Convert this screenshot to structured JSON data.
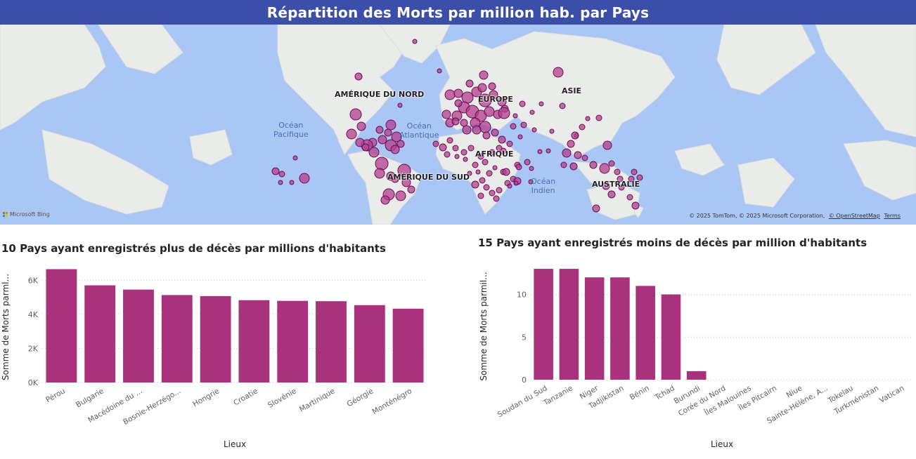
{
  "banner": {
    "title": "Répartition des Morts par million hab. par Pays"
  },
  "map": {
    "region_labels": [
      {
        "id": "north-america",
        "text": "AMÉRIQUE DU NORD"
      },
      {
        "id": "europe",
        "text": "EUROPE"
      },
      {
        "id": "asia",
        "text": "ASIE"
      },
      {
        "id": "africa",
        "text": "AFRIQUE"
      },
      {
        "id": "south-america",
        "text": "AMÉRIQUE DU SUD"
      },
      {
        "id": "australia",
        "text": "AUSTRALIE"
      }
    ],
    "ocean_labels": [
      {
        "id": "pacific",
        "line1": "Océan",
        "line2": "Pacifique"
      },
      {
        "id": "atlantic",
        "line1": "Océan",
        "line2": "Atlantique"
      },
      {
        "id": "indian",
        "line1": "Océan",
        "line2": "Indien"
      }
    ],
    "logo_text": "Microsoft Bing",
    "attribution": "© 2025 TomTom, © 2025 Microsoft Corporation,",
    "attribution_link": "© OpenStreetMap",
    "terms_link": "Terms",
    "colors": {
      "bubble_fill": "#b13e8e",
      "bubble_stroke": "#6b0f4f",
      "water": "#a9c6f5",
      "land": "#eaecea"
    }
  },
  "chart_data": [
    {
      "type": "bar",
      "title": "10 Pays ayant enregistrés plus de décès par millions d'habitants",
      "xlabel": "Lieux",
      "ylabel": "Somme de Morts parml...",
      "categories": [
        "Pérou",
        "Bulgarie",
        "Macédoine du ...",
        "Bosnie-Herzégo...",
        "Hongrie",
        "Croatie",
        "Slovénie",
        "Martinique",
        "Géorgie",
        "Monténégro"
      ],
      "values": [
        6650,
        5700,
        5450,
        5130,
        5070,
        4830,
        4790,
        4770,
        4540,
        4330
      ],
      "ylim": [
        0,
        7000
      ],
      "yticks": [
        {
          "value": 0,
          "label": "0K"
        },
        {
          "value": 2000,
          "label": "2K"
        },
        {
          "value": 4000,
          "label": "4K"
        },
        {
          "value": 6000,
          "label": "6K"
        }
      ],
      "color": "#a8327c",
      "grid": true
    },
    {
      "type": "bar",
      "title": "15 Pays ayant enregistrés moins de décès par million d'habitants",
      "xlabel": "Lieux",
      "ylabel": "Somme de Morts parmil...",
      "categories": [
        "Soudan du Sud",
        "Tanzanie",
        "Niger",
        "Tadjikistan",
        "Bénin",
        "Tchad",
        "Burundi",
        "Corée du Nord",
        "Îles Malouines",
        "Îles Pitcairn",
        "Niue",
        "Sainte-Hélène, A...",
        "Tokelau",
        "Turkménistan",
        "Vatican"
      ],
      "values": [
        13,
        13,
        12,
        12,
        11,
        10,
        1,
        0,
        0,
        0,
        0,
        0,
        0,
        0,
        0
      ],
      "ylim": [
        0,
        13.5
      ],
      "yticks": [
        {
          "value": 0,
          "label": "0"
        },
        {
          "value": 5,
          "label": "5"
        },
        {
          "value": 10,
          "label": "10"
        }
      ],
      "color": "#a8327c",
      "grid": true
    }
  ]
}
